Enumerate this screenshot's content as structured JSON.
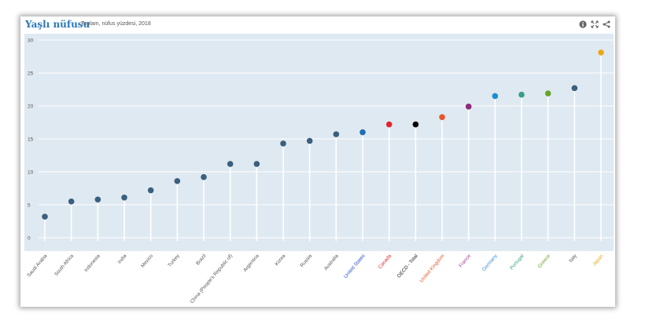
{
  "header": {
    "title": "Yaşlı nüfusu",
    "subtitle": "Toplam, nüfus yüzdesi, 2018"
  },
  "toolbar": {
    "icons": [
      "info-icon",
      "expand-icon",
      "share-icon"
    ]
  },
  "colors": {
    "plot_background": "#dfe9f1",
    "default_marker": "#3b5f7d",
    "gridline": "#ffffff"
  },
  "chart_data": {
    "type": "scatter",
    "style": "lollipop",
    "title": "Yaşlı nüfusu",
    "subtitle": "Toplam, nüfus yüzdesi, 2018",
    "ylim": [
      0,
      30
    ],
    "yticks": [
      0,
      5,
      10,
      15,
      20,
      25,
      30
    ],
    "grid": true,
    "categories": [
      "Saudi Arabia",
      "South Africa",
      "Indonesia",
      "India",
      "Mexico",
      "Turkey",
      "Brazil",
      "China (People's Republic of)",
      "Argentina",
      "Korea",
      "Russia",
      "Australia",
      "United States",
      "Canada",
      "OECD - Total",
      "United Kingdom",
      "France",
      "Germany",
      "Portugal",
      "Greece",
      "Italy",
      "Japan"
    ],
    "values": [
      3.2,
      5.5,
      5.8,
      6.1,
      7.2,
      8.6,
      9.2,
      11.2,
      11.2,
      14.3,
      14.7,
      15.7,
      16.0,
      17.2,
      17.2,
      18.3,
      19.9,
      21.5,
      21.7,
      21.9,
      22.7,
      28.1
    ],
    "colors": [
      "#3b5f7d",
      "#3b5f7d",
      "#3b5f7d",
      "#3b5f7d",
      "#3b5f7d",
      "#3b5f7d",
      "#3b5f7d",
      "#3b5f7d",
      "#3b5f7d",
      "#3b5f7d",
      "#3b5f7d",
      "#3b5f7d",
      "#1f6db5",
      "#e0262c",
      "#000000",
      "#e4572e",
      "#8e2a78",
      "#1c8fd1",
      "#3a9e83",
      "#69a42b",
      "#3b5f7d",
      "#e8aa1a"
    ],
    "label_colors": [
      "#555555",
      "#555555",
      "#555555",
      "#555555",
      "#555555",
      "#555555",
      "#555555",
      "#555555",
      "#555555",
      "#555555",
      "#555555",
      "#555555",
      "#2b4fc4",
      "#e0262c",
      "#222222",
      "#e4572e",
      "#a33c8c",
      "#3a8fd6",
      "#3a9e83",
      "#69a42b",
      "#555555",
      "#e8aa1a"
    ]
  }
}
